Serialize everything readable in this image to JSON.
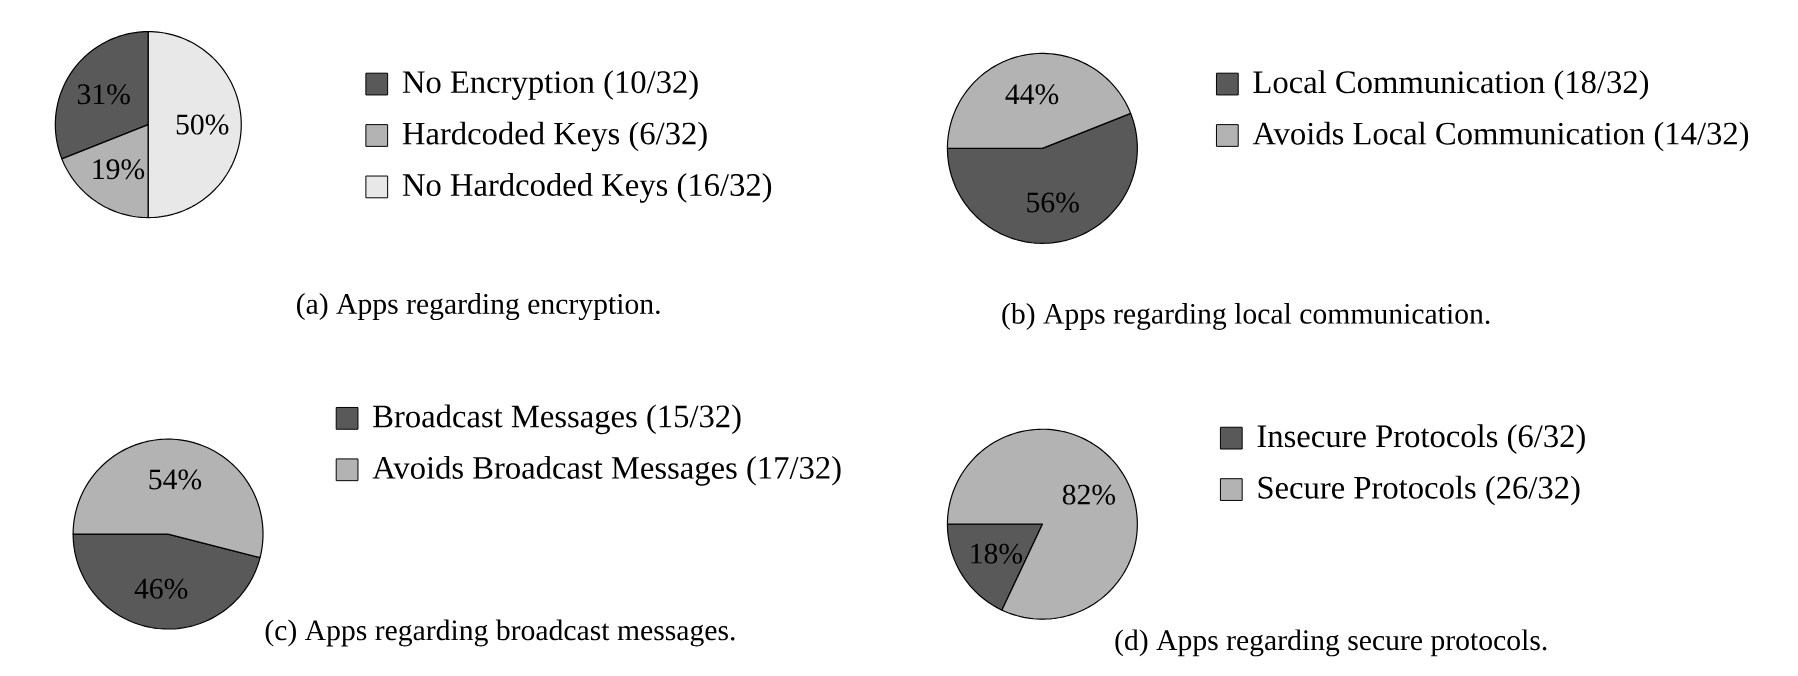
{
  "chart_data": [
    {
      "type": "pie",
      "title": "(a) Apps regarding encryption.",
      "categories": [
        "No Encryption (10/32)",
        "Hardcoded Keys (6/32)",
        "No Hardcoded Keys (16/32)"
      ],
      "values": [
        31,
        19,
        50
      ],
      "value_labels": [
        "31%",
        "19%",
        "50%"
      ],
      "colors": [
        "#595959",
        "#b3b3b3",
        "#e8e8e8"
      ],
      "legend": "right"
    },
    {
      "type": "pie",
      "title": "(b) Apps regarding local communication.",
      "categories": [
        "Local Communication (18/32)",
        "Avoids Local Communication (14/32)"
      ],
      "values": [
        56,
        44
      ],
      "value_labels": [
        "56%",
        "44%"
      ],
      "colors": [
        "#595959",
        "#b3b3b3"
      ],
      "legend": "right"
    },
    {
      "type": "pie",
      "title": "(c) Apps regarding broadcast messages.",
      "categories": [
        "Broadcast Messages (15/32)",
        "Avoids Broadcast Messages (17/32)"
      ],
      "values": [
        46,
        54
      ],
      "value_labels": [
        "46%",
        "54%"
      ],
      "colors": [
        "#595959",
        "#b3b3b3"
      ],
      "legend": "right"
    },
    {
      "type": "pie",
      "title": "(d) Apps regarding secure protocols.",
      "categories": [
        "Insecure Protocols (6/32)",
        "Secure Protocols (26/32)"
      ],
      "values": [
        18,
        82
      ],
      "value_labels": [
        "18%",
        "82%"
      ],
      "colors": [
        "#595959",
        "#b3b3b3"
      ],
      "legend": "right"
    }
  ]
}
